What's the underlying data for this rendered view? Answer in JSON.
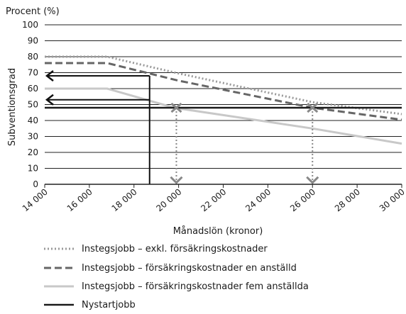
{
  "chart_data": {
    "type": "line",
    "title": "",
    "unit_label": "Procent (%)",
    "ylabel": "Subventionsgrad",
    "xlabel": "Månadslön (kronor)",
    "xlim": [
      14000,
      30000
    ],
    "ylim": [
      0,
      100
    ],
    "x_ticks": [
      14000,
      16000,
      18000,
      20000,
      22000,
      24000,
      26000,
      28000,
      30000
    ],
    "x_tick_labels": [
      "14 000",
      "16 000",
      "18 000",
      "20 000",
      "22 000",
      "24 000",
      "26 000",
      "28 000",
      "30 000"
    ],
    "y_ticks": [
      0,
      10,
      20,
      30,
      40,
      50,
      60,
      70,
      80,
      90,
      100
    ],
    "y_tick_labels": [
      "0",
      "10",
      "20",
      "30",
      "40",
      "50",
      "60",
      "70",
      "80",
      "90",
      "100"
    ],
    "grid": "horizontal",
    "legend_position": "bottom",
    "series": [
      {
        "name": "Instegsjobb – exkl. försäkringskostnader",
        "color": "#9a9a9a",
        "style": "dotted",
        "points": [
          [
            14000,
            80
          ],
          [
            16800,
            80
          ],
          [
            20000,
            69.5
          ],
          [
            26000,
            51.5
          ],
          [
            30000,
            44
          ]
        ]
      },
      {
        "name": "Instegsjobb – försäkringskostnader en anställd",
        "color": "#666666",
        "style": "dashed",
        "points": [
          [
            14000,
            76
          ],
          [
            16800,
            76
          ],
          [
            20000,
            65
          ],
          [
            26000,
            48
          ],
          [
            30000,
            40.5
          ]
        ]
      },
      {
        "name": "Instegsjobb – försäkringskostnader fem anställda",
        "color": "#c8c8c8",
        "style": "solid",
        "points": [
          [
            14000,
            60
          ],
          [
            16800,
            60
          ],
          [
            19800,
            48
          ],
          [
            26000,
            35
          ],
          [
            30000,
            25.5
          ]
        ]
      },
      {
        "name": "Nystartjobb",
        "color": "#1a1a1a",
        "style": "solid",
        "points": [
          [
            14000,
            48
          ],
          [
            30000,
            48
          ]
        ]
      }
    ],
    "annotations": {
      "vertical_drop_x": 18700,
      "arrows_left": [
        {
          "from_x": 18700,
          "y": 68
        },
        {
          "from_x": 18700,
          "y": 53
        }
      ],
      "drop_arrows_down": [
        {
          "x": 19900,
          "from_y": 48,
          "to_y": 1
        },
        {
          "x": 26000,
          "from_y": 48,
          "to_y": 1
        }
      ]
    }
  }
}
